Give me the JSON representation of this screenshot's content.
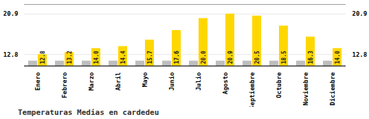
{
  "chart_data": {
    "type": "bar",
    "title": "Temperaturas Medias en cardedeu",
    "categories": [
      "Enero",
      "Febrero",
      "Marzo",
      "Abril",
      "Mayo",
      "Junio",
      "Julio",
      "Agosto",
      "Septiembre",
      "Octubre",
      "Noviembre",
      "Diciembre"
    ],
    "series": [
      {
        "color": "#BEBEBE",
        "values": [
          11.5,
          11.5,
          11.5,
          11.5,
          11.5,
          11.5,
          11.5,
          11.5,
          11.5,
          11.5,
          11.5,
          11.5
        ]
      },
      {
        "color": "#FFD700",
        "values": [
          12.8,
          13.2,
          14.0,
          14.4,
          15.7,
          17.6,
          20.0,
          20.9,
          20.5,
          18.5,
          16.3,
          14.0
        ],
        "value_labels": [
          "12.8",
          "13.2",
          "14.0",
          "14.4",
          "15.7",
          "17.6",
          "20.0",
          "20.9",
          "20.5",
          "18.5",
          "16.3",
          "14.0"
        ]
      }
    ],
    "ylim": [
      10.5,
      22.8
    ],
    "yticks": [
      12.8,
      20.9
    ],
    "grid": true,
    "data_labels": true
  }
}
